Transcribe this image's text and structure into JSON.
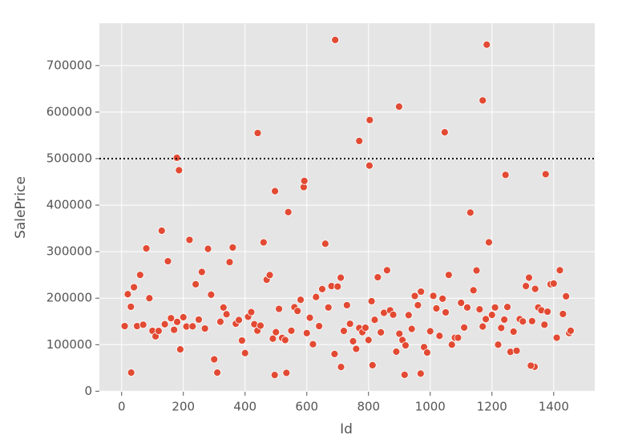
{
  "chart_data": {
    "type": "scatter",
    "x_label": "Id",
    "y_label": "SalePrice",
    "color": "#E24A33",
    "grid": true,
    "hline": 500000,
    "xlim": [
      -72,
      1533
    ],
    "ylim": [
      -1105,
      791005
    ],
    "xticks": [
      0,
      200,
      400,
      600,
      800,
      1000,
      1200,
      1400
    ],
    "yticks": [
      0,
      100000,
      200000,
      300000,
      400000,
      500000,
      600000,
      700000
    ],
    "x": [
      10,
      20,
      30,
      40,
      50,
      60,
      70,
      80,
      90,
      100,
      110,
      120,
      130,
      140,
      150,
      160,
      170,
      180,
      190,
      200,
      210,
      220,
      230,
      240,
      250,
      260,
      270,
      280,
      290,
      300,
      310,
      320,
      330,
      340,
      350,
      360,
      370,
      380,
      390,
      400,
      410,
      420,
      430,
      440,
      450,
      460,
      470,
      480,
      490,
      500,
      510,
      520,
      530,
      540,
      550,
      560,
      570,
      580,
      590,
      600,
      610,
      620,
      630,
      640,
      650,
      660,
      670,
      680,
      690,
      700,
      710,
      720,
      730,
      740,
      750,
      760,
      770,
      780,
      790,
      800,
      810,
      820,
      830,
      840,
      850,
      860,
      870,
      880,
      890,
      900,
      910,
      920,
      930,
      940,
      950,
      960,
      970,
      980,
      990,
      1000,
      1010,
      1020,
      1030,
      1040,
      1050,
      1060,
      1070,
      1080,
      1090,
      1100,
      1110,
      1120,
      1130,
      1140,
      1150,
      1160,
      1170,
      1180,
      1190,
      1200,
      1210,
      1220,
      1230,
      1240,
      1250,
      1260,
      1270,
      1280,
      1290,
      1300,
      1310,
      1320,
      1330,
      1340,
      1350,
      1360,
      1370,
      1380,
      1390,
      1400,
      1410,
      1420,
      1430,
      1440,
      1450,
      1455,
      692,
      1183,
      1170,
      899,
      804,
      1047,
      441,
      770,
      179,
      803,
      186,
      1244,
      1374,
      592,
      497,
      496,
      917,
      969,
      534,
      31,
      711,
      1338,
      813,
      1326
    ],
    "y": [
      140000,
      208500,
      181500,
      223500,
      140000,
      250000,
      143000,
      307000,
      200000,
      129900,
      118000,
      129500,
      345000,
      144000,
      279500,
      157000,
      132000,
      149000,
      90000,
      159000,
      139000,
      325300,
      139400,
      230000,
      154000,
      256300,
      134800,
      306000,
      207500,
      68500,
      40000,
      149350,
      179900,
      165500,
      277500,
      309000,
      145000,
      153000,
      109000,
      82000,
      160000,
      170000,
      144000,
      130250,
      141000,
      319900,
      239686,
      249700,
      113000,
      127000,
      177000,
      114500,
      110000,
      385000,
      130000,
      180500,
      172500,
      196500,
      438780,
      124900,
      158000,
      101000,
      202500,
      140000,
      219500,
      317000,
      180000,
      226000,
      80000,
      225000,
      244000,
      129500,
      185000,
      144900,
      107400,
      91000,
      135750,
      127000,
      136500,
      110000,
      193500,
      153500,
      245000,
      126500,
      168500,
      260000,
      174000,
      164500,
      85000,
      123600,
      109900,
      98600,
      163500,
      133900,
      204750,
      185000,
      214000,
      94750,
      83000,
      128950,
      205000,
      178000,
      118964,
      198900,
      169500,
      250000,
      100000,
      115000,
      115000,
      190000,
      136900,
      180000,
      383970,
      217000,
      259500,
      176000,
      139000,
      155000,
      320000,
      163990,
      180000,
      100000,
      136000,
      153900,
      181000,
      84500,
      128000,
      87000,
      155000,
      150000,
      226000,
      244000,
      150750,
      220000,
      180000,
      174000,
      143000,
      171000,
      230000,
      231500,
      115000,
      260000,
      166000,
      204000,
      125000,
      130000,
      755000,
      745000,
      625000,
      611657,
      582933,
      556581,
      555000,
      538000,
      501837,
      485000,
      475000,
      465000,
      466500,
      451950,
      430000,
      34900,
      35311,
      37900,
      39300,
      40000,
      52000,
      52500,
      55993,
      55000
    ]
  }
}
